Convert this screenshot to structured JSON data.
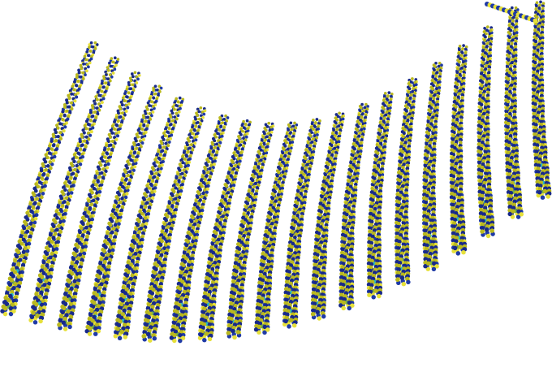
{
  "image": {
    "subject": "",
    "background_color": "#ffffff",
    "colors": {
      "blue": "#1f3aa6",
      "blue_dark": "#18298a",
      "yellow": "#e6e03a",
      "yellow_dark": "#b9b81e",
      "cyan": "#26b9c4",
      "green": "#6fae4a"
    },
    "helix_count": 20
  }
}
